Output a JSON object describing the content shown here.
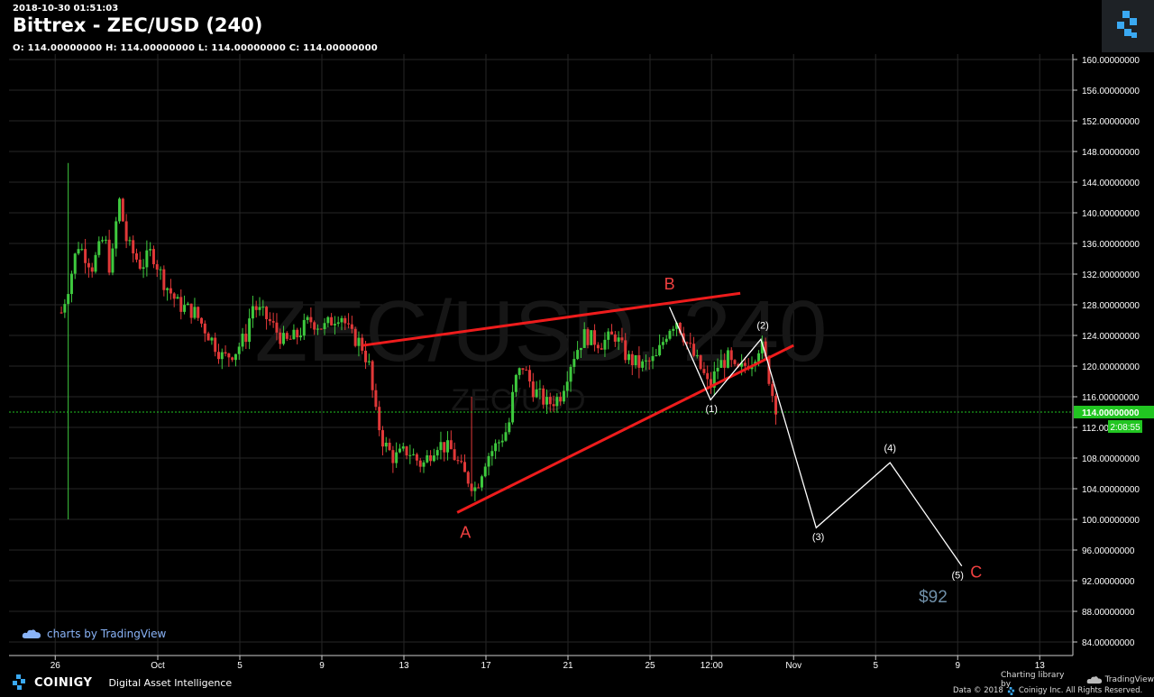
{
  "header": {
    "timestamp": "2018-10-30 01:51:03",
    "title": "Bittrex - ZEC/USD (240)",
    "ohlc": "O: 114.00000000 H: 114.00000000 L: 114.00000000 C: 114.00000000"
  },
  "watermark": {
    "main": "ZEC/USD, 240",
    "sub": "ZEC/USD"
  },
  "footer": {
    "tv_brand": "charts by TradingView",
    "coinigy_name": "COINIGY",
    "coinigy_tagline": "Digital Asset Intelligence",
    "charting_library": "Charting library by",
    "tradingview": "TradingView",
    "data_copyright": "Data © 2018",
    "coinigy_copyright": "Coinigy Inc. All Rights Reserved."
  },
  "colors": {
    "background": "#000000",
    "up_candle": "#3ec93e",
    "down_candle": "#e03838",
    "grid": "#262626",
    "trendline": "#ee1c1c",
    "wave_path": "#ffffff",
    "wave_label_abc": "#f04040",
    "target_label": "#6f8fa8",
    "price_line": "#21c521"
  },
  "chart_data": {
    "type": "candlestick",
    "symbol": "ZEC/USD",
    "exchange": "Bittrex",
    "interval": "240",
    "ylim": [
      82,
      162
    ],
    "y_ticks": [
      "160.00000000",
      "156.00000000",
      "152.00000000",
      "148.00000000",
      "144.00000000",
      "140.00000000",
      "136.00000000",
      "132.00000000",
      "128.00000000",
      "124.00000000",
      "120.00000000",
      "116.00000000",
      "112.00000000",
      "108.00000000",
      "104.00000000",
      "100.00000000",
      "96.00000000",
      "92.00000000",
      "88.00000000",
      "84.00000000"
    ],
    "x_ticks": [
      "26",
      "Oct",
      "5",
      "9",
      "13",
      "17",
      "21",
      "25",
      "12:00",
      "Nov",
      "5",
      "9",
      "13"
    ],
    "current_price": {
      "label": "114.00000000",
      "value": 114,
      "countdown": "2:08:55"
    },
    "price_anchors": [
      {
        "d": -4.7,
        "p": 127
      },
      {
        "d": -4.3,
        "p": 131
      },
      {
        "d": -3.9,
        "p": 136
      },
      {
        "d": -3.2,
        "p": 133
      },
      {
        "d": -2.6,
        "p": 137
      },
      {
        "d": -2.3,
        "p": 132
      },
      {
        "d": -1.9,
        "p": 142
      },
      {
        "d": -1.5,
        "p": 136
      },
      {
        "d": -0.8,
        "p": 133
      },
      {
        "d": -0.3,
        "p": 135
      },
      {
        "d": 0.3,
        "p": 131
      },
      {
        "d": 1.0,
        "p": 128
      },
      {
        "d": 1.8,
        "p": 127
      },
      {
        "d": 2.5,
        "p": 124
      },
      {
        "d": 3.2,
        "p": 121
      },
      {
        "d": 3.8,
        "p": 122
      },
      {
        "d": 4.3,
        "p": 124
      },
      {
        "d": 4.6,
        "p": 128
      },
      {
        "d": 5.4,
        "p": 126
      },
      {
        "d": 6.2,
        "p": 123
      },
      {
        "d": 6.8,
        "p": 124
      },
      {
        "d": 7.4,
        "p": 126
      },
      {
        "d": 8.1,
        "p": 125
      },
      {
        "d": 8.9,
        "p": 127
      },
      {
        "d": 9.4,
        "p": 124
      },
      {
        "d": 9.9,
        "p": 123
      },
      {
        "d": 10.3,
        "p": 120
      },
      {
        "d": 10.6,
        "p": 114
      },
      {
        "d": 11.0,
        "p": 110
      },
      {
        "d": 11.5,
        "p": 108
      },
      {
        "d": 12.2,
        "p": 109
      },
      {
        "d": 12.9,
        "p": 107
      },
      {
        "d": 13.6,
        "p": 110
      },
      {
        "d": 14.3,
        "p": 109
      },
      {
        "d": 14.9,
        "p": 106
      },
      {
        "d": 15.5,
        "p": 104
      },
      {
        "d": 16.0,
        "p": 108
      },
      {
        "d": 16.6,
        "p": 110
      },
      {
        "d": 17.1,
        "p": 112
      },
      {
        "d": 17.4,
        "p": 118
      },
      {
        "d": 17.8,
        "p": 120
      },
      {
        "d": 18.3,
        "p": 117
      },
      {
        "d": 19.0,
        "p": 115
      },
      {
        "d": 19.6,
        "p": 116
      },
      {
        "d": 20.2,
        "p": 121
      },
      {
        "d": 20.8,
        "p": 124
      },
      {
        "d": 21.6,
        "p": 123
      },
      {
        "d": 22.3,
        "p": 124
      },
      {
        "d": 22.9,
        "p": 121
      },
      {
        "d": 23.6,
        "p": 120
      },
      {
        "d": 24.3,
        "p": 121
      },
      {
        "d": 24.9,
        "p": 125
      },
      {
        "d": 25.3,
        "p": 126
      },
      {
        "d": 25.8,
        "p": 123
      },
      {
        "d": 26.2,
        "p": 121
      },
      {
        "d": 26.6,
        "p": 119
      },
      {
        "d": 26.9,
        "p": 117
      },
      {
        "d": 27.3,
        "p": 120
      },
      {
        "d": 27.8,
        "p": 121
      },
      {
        "d": 28.2,
        "p": 119
      },
      {
        "d": 28.6,
        "p": 120
      },
      {
        "d": 29.0,
        "p": 121
      },
      {
        "d": 29.4,
        "p": 123
      },
      {
        "d": 29.7,
        "p": 120
      },
      {
        "d": 29.9,
        "p": 117
      },
      {
        "d": 30.1,
        "p": 115
      },
      {
        "d": 30.25,
        "p": 114
      }
    ],
    "trendlines": [
      {
        "name": "upper",
        "from": {
          "d": 10.0,
          "p": 122.7
        },
        "to": {
          "d": 28.4,
          "p": 129.5
        }
      },
      {
        "name": "lower",
        "from": {
          "d": 14.6,
          "p": 100.9
        },
        "to": {
          "d": 31.0,
          "p": 122.7
        }
      }
    ],
    "wave_path": [
      {
        "d": 24.95,
        "p": 127.7
      },
      {
        "d": 26.95,
        "p": 115.6
      },
      {
        "d": 29.4,
        "p": 123.5
      },
      {
        "d": 29.6,
        "p": 121.8
      },
      {
        "d": 32.1,
        "p": 98.9
      },
      {
        "d": 35.7,
        "p": 107.4
      },
      {
        "d": 39.2,
        "p": 93.9
      }
    ],
    "wave_labels": [
      {
        "text": "A",
        "d": 15.0,
        "p": 97.6,
        "style": "abc"
      },
      {
        "text": "B",
        "d": 24.95,
        "p": 130.0,
        "style": "abc"
      },
      {
        "text": "C",
        "d": 39.9,
        "p": 92.4,
        "style": "abc"
      },
      {
        "text": "(1)",
        "d": 27.0,
        "p": 114.0,
        "style": "sub"
      },
      {
        "text": "(2)",
        "d": 29.5,
        "p": 124.9,
        "style": "sub"
      },
      {
        "text": "(3)",
        "d": 32.2,
        "p": 97.3,
        "style": "sub"
      },
      {
        "text": "(4)",
        "d": 35.7,
        "p": 108.9,
        "style": "sub"
      },
      {
        "text": "(5)",
        "d": 39.0,
        "p": 92.3,
        "style": "sub"
      },
      {
        "text": "$92",
        "d": 37.8,
        "p": 89.2,
        "style": "target"
      }
    ]
  }
}
